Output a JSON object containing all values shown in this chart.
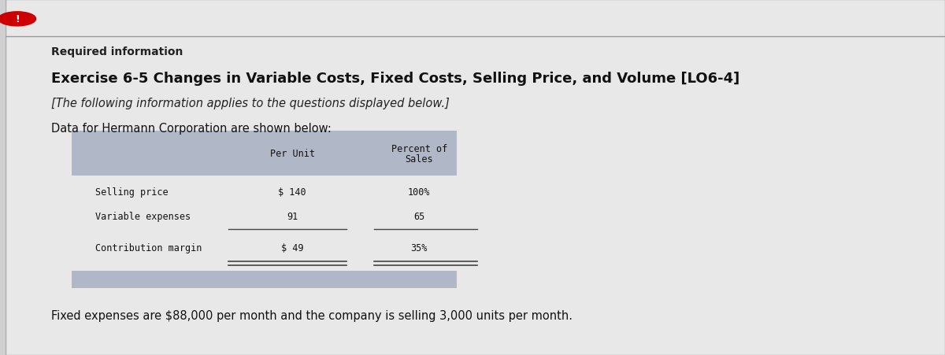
{
  "bg_color": "#d0d0d0",
  "panel_color": "#e8e8e8",
  "header_bg": "#b0b8c8",
  "footer_bar_bg": "#b0b8c8",
  "required_info_label": "Required information",
  "title": "Exercise 6-5 Changes in Variable Costs, Fixed Costs, Selling Price, and Volume [LO6-4]",
  "subtitle": "[The following information applies to the questions displayed below.]",
  "data_intro": "Data for Hermann Corporation are shown below:",
  "col1_header1": "Per Unit",
  "col2_header1": "Percent of",
  "col2_header2": "Sales",
  "rows": [
    {
      "label": "Selling price",
      "col1": "$ 140",
      "col2": "100%"
    },
    {
      "label": "Variable expenses",
      "col1": "91",
      "col2": "65"
    },
    {
      "label": "Contribution margin",
      "col1": "$ 49",
      "col2": "35%"
    }
  ],
  "footer_text": "Fixed expenses are $88,000 per month and the company is selling 3,000 units per month.",
  "warning_icon": "!",
  "top_line_color": "#999999",
  "line_color": "#444444",
  "text_color": "#111111",
  "text_color2": "#222222"
}
